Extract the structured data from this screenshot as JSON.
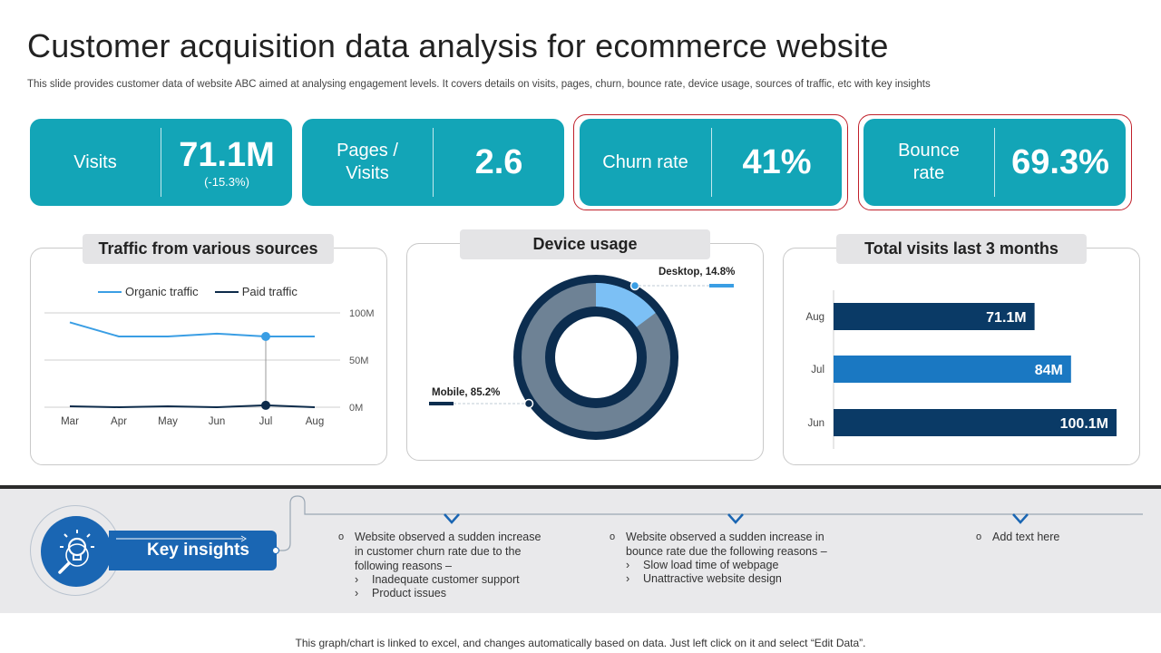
{
  "page": {
    "title": "Customer acquisition data analysis for ecommerce website",
    "subtitle": "This slide provides customer data of website ABC aimed at analysing engagement levels. It covers details on visits, pages, churn, bounce rate, device usage, sources of traffic, etc with key insights",
    "footer": "This graph/chart is linked to excel, and changes automatically based on data. Just left click on it and select “Edit Data”."
  },
  "kpis": [
    {
      "label": "Visits",
      "value": "71.1M",
      "sub": "(-15.3%)"
    },
    {
      "label_line1": "Pages /",
      "label_line2": "Visits",
      "value": "2.6"
    },
    {
      "label": "Churn rate",
      "value": "41%"
    },
    {
      "label_line1": "Bounce",
      "label_line2": "rate",
      "value": "69.3%"
    }
  ],
  "colors": {
    "kpi": "#13a5b7",
    "highlight_border": "#c0202a",
    "organic": "#3a9ee4",
    "paid": "#0d2b4a",
    "bar_dark": "#0a3a66",
    "bar_light": "#1a78c2",
    "insight_blue": "#1a66b3"
  },
  "panels": {
    "traffic_title": "Traffic from various sources",
    "device_title": "Device usage",
    "visits_title": "Total visits last 3 months"
  },
  "chart_data": [
    {
      "type": "line",
      "title": "Traffic from various sources",
      "categories": [
        "Mar",
        "Apr",
        "May",
        "Jun",
        "Jul",
        "Aug"
      ],
      "series": [
        {
          "name": "Organic traffic",
          "values": [
            90,
            75,
            75,
            78,
            75,
            75
          ]
        },
        {
          "name": "Paid traffic",
          "values": [
            1,
            0,
            1,
            0,
            2,
            0
          ]
        }
      ],
      "y_ticks": [
        "0M",
        "50M",
        "100M"
      ],
      "ylim": [
        0,
        100
      ],
      "legend": "top",
      "grid": true,
      "highlight_category": "Jul"
    },
    {
      "type": "pie",
      "title": "Device usage",
      "labels": [
        "Desktop",
        "Mobile"
      ],
      "values": [
        14.8,
        85.2
      ],
      "data_labels": [
        "Desktop, 14.8%",
        "Mobile, 85.2%"
      ]
    },
    {
      "type": "bar",
      "orientation": "horizontal",
      "title": "Total visits last 3 months",
      "categories": [
        "Aug",
        "Jul",
        "Jun"
      ],
      "values": [
        71.1,
        84,
        100.1
      ],
      "data_labels": [
        "71.1M",
        "84M",
        "100.1M"
      ],
      "xlim": [
        0,
        100.1
      ]
    }
  ],
  "insights": {
    "label": "Key insights",
    "items": [
      {
        "main_lines": [
          "Website observed  a sudden increase",
          "in customer churn rate due to the",
          "following reasons –"
        ],
        "subs": [
          "Inadequate customer support",
          "Product issues"
        ]
      },
      {
        "main_lines": [
          "Website observed  a sudden increase in",
          "bounce rate due the following reasons –"
        ],
        "subs": [
          "Slow load time of webpage",
          "Unattractive website design"
        ]
      },
      {
        "main_lines": [
          "Add text here"
        ],
        "subs": []
      }
    ],
    "bullet": "o",
    "sub_bullet": "›"
  }
}
